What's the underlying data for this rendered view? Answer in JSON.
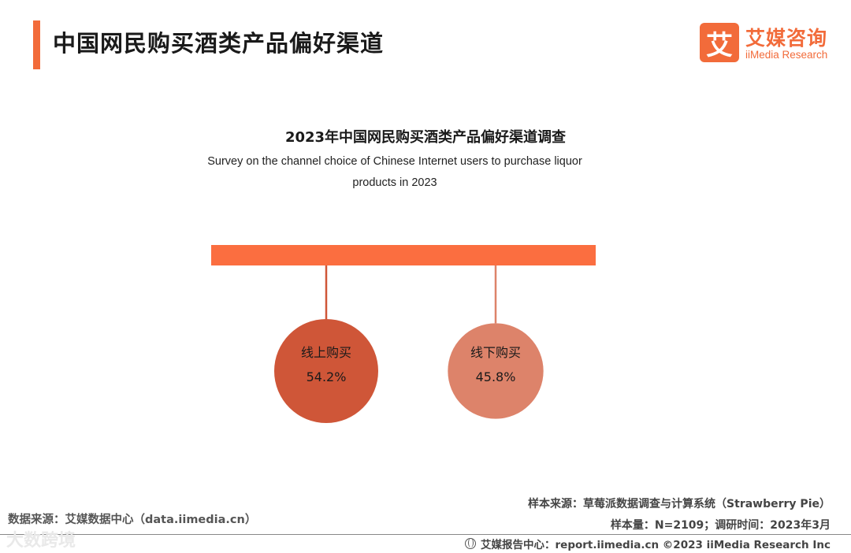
{
  "header": {
    "title": "中国网民购买酒类产品偏好渠道",
    "accent_color": "#f26b3a"
  },
  "logo": {
    "mark": "艾",
    "name_cn": "艾媒咨询",
    "name_en": "iiMedia Research"
  },
  "chart_data": {
    "type": "bubble",
    "title": "2023年中国网民购买酒类产品偏好渠道调查",
    "subtitle": "Survey on the channel choice of Chinese Internet users to purchase liquor products in 2023",
    "unit": "%",
    "categories": [
      "线上购买",
      "线下购买"
    ],
    "values": [
      54.2,
      45.8
    ],
    "value_labels": [
      "54.2%",
      "45.8%"
    ],
    "colors": [
      "#cf5638",
      "#dd836a"
    ],
    "bar_color": "#fb6e40"
  },
  "footer": {
    "source_left": "数据来源：艾媒数据中心（data.iimedia.cn）",
    "sample_source": "样本来源：草莓派数据调查与计算系统（Strawberry Pie）",
    "sample_info": "样本量：N=2109；调研时间：2023年3月",
    "report_center": "艾媒报告中心：report.iimedia.cn   ©2023  iiMedia Research  Inc",
    "globe_icon": "globe-icon",
    "watermark": "大数跨境"
  }
}
